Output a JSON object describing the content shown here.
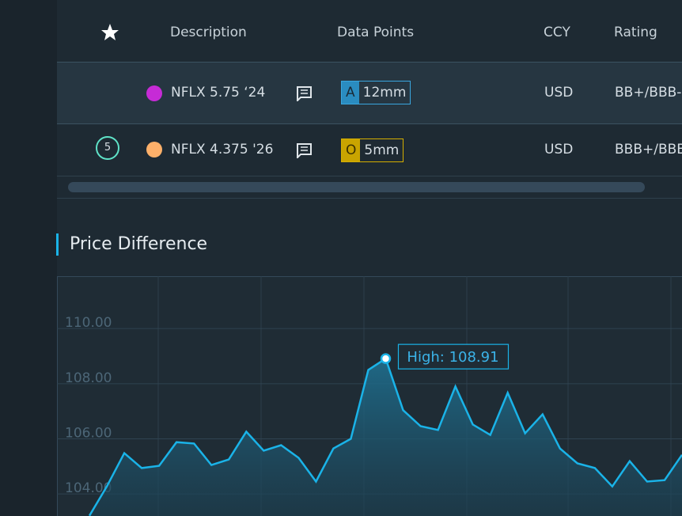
{
  "table": {
    "columns": [
      "Description",
      "Data Points",
      "CCY",
      "Rating"
    ],
    "rows": [
      {
        "badge": null,
        "name": "NFLX 5.75 ‘24",
        "tag": "A",
        "amount": "12mm",
        "ccy": "USD",
        "rating": "BB+/BBB-"
      },
      {
        "badge": "5",
        "name": "NFLX 4.375 '26",
        "tag": "O",
        "amount": "5mm",
        "ccy": "USD",
        "rating": "BBB+/BBB-"
      }
    ]
  },
  "chart": {
    "type": "area",
    "title": "Price Difference",
    "color": "#1ab3e8",
    "ylim": [
      103.2,
      111.9
    ],
    "yticks": [
      {
        "value": 104,
        "label": "104.00"
      },
      {
        "value": 106,
        "label": "106.00"
      },
      {
        "value": 108,
        "label": "108.00"
      },
      {
        "value": 110,
        "label": "110.00"
      }
    ],
    "values": [
      103.21,
      104.27,
      105.48,
      104.94,
      105.02,
      105.88,
      105.83,
      105.05,
      105.25,
      106.26,
      105.57,
      105.77,
      105.31,
      104.45,
      105.65,
      106.0,
      108.5,
      108.91,
      107.04,
      106.46,
      106.32,
      107.9,
      106.52,
      106.14,
      107.67,
      106.2,
      106.89,
      105.65,
      105.11,
      104.94,
      104.27,
      105.19,
      104.45,
      104.5,
      105.42
    ],
    "annotation": "High: 108.91",
    "grid": true
  }
}
